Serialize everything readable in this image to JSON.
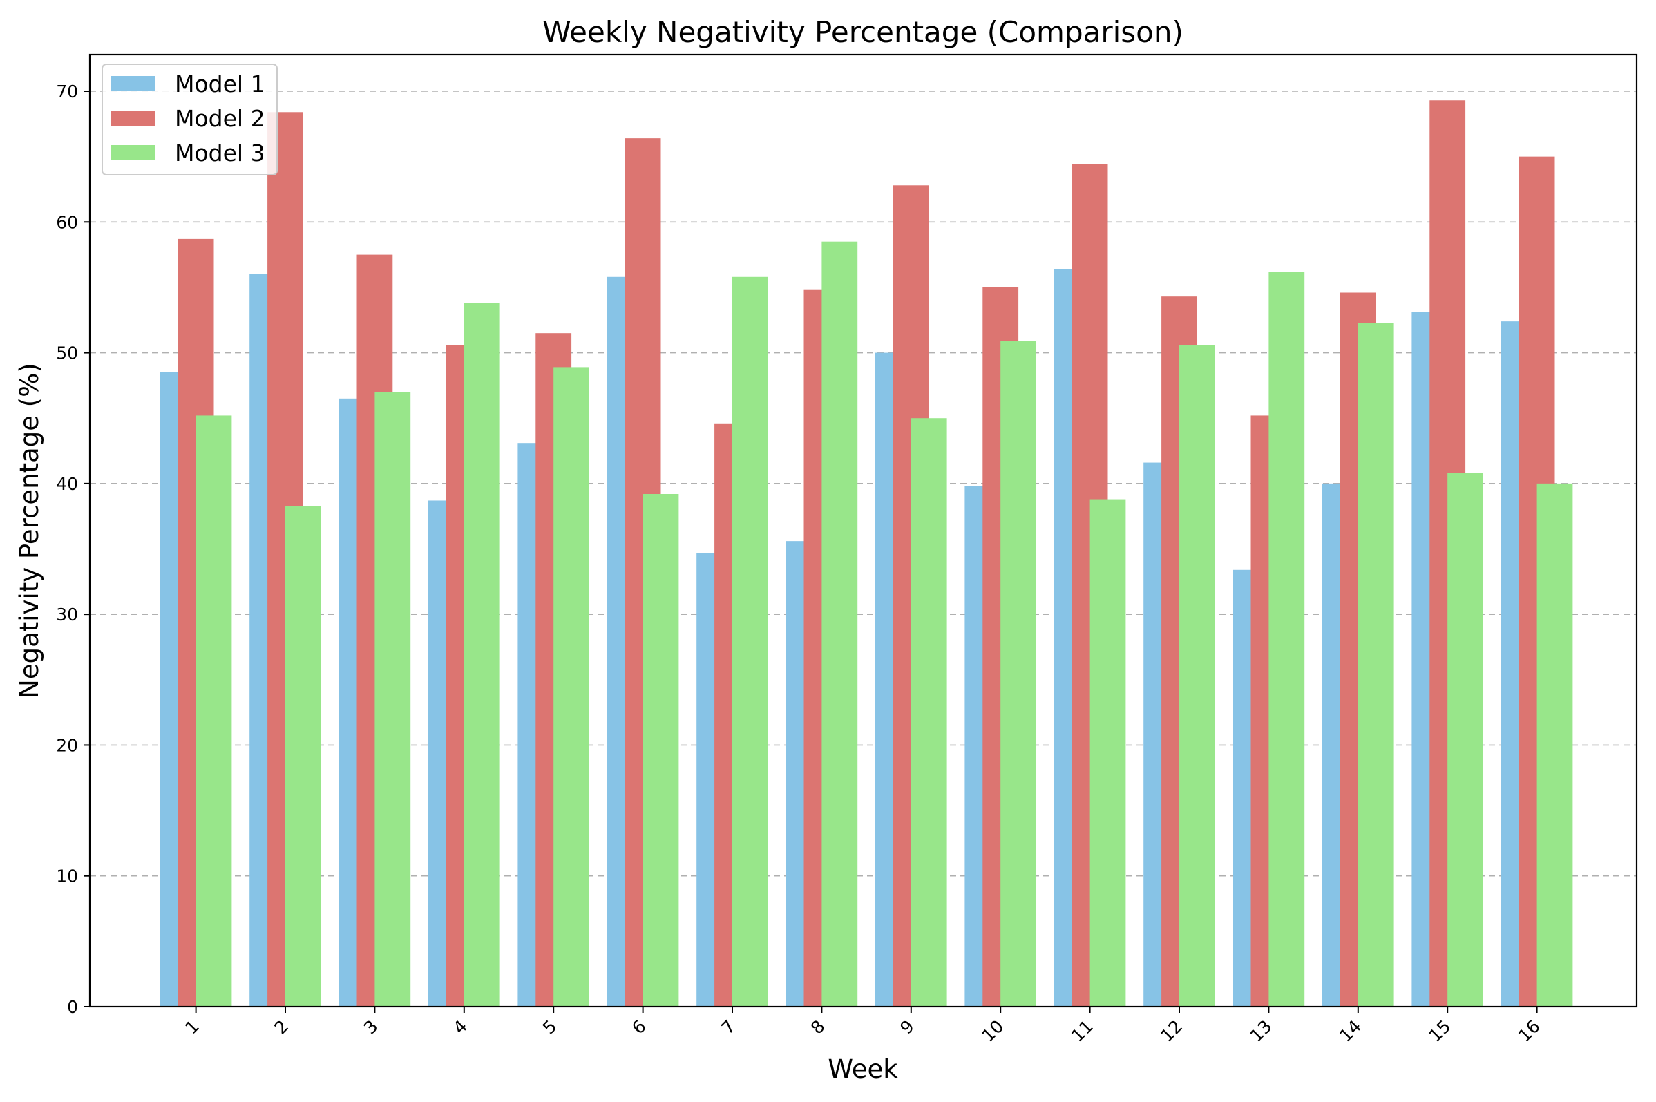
{
  "chart_data": {
    "type": "bar",
    "title": "Weekly Negativity Percentage (Comparison)",
    "xlabel": "Week",
    "ylabel": "Negativity Percentage (%)",
    "categories": [
      "1",
      "2",
      "3",
      "4",
      "5",
      "6",
      "7",
      "8",
      "9",
      "10",
      "11",
      "12",
      "13",
      "14",
      "15",
      "16"
    ],
    "ylim": [
      0,
      72.8
    ],
    "yticks": [
      0,
      10,
      20,
      30,
      40,
      50,
      60,
      70
    ],
    "grid": "y-dashed",
    "legend_position": "top-left",
    "series": [
      {
        "name": "Model 1",
        "color": "#87c3e6",
        "values": [
          48.5,
          56.0,
          46.5,
          38.7,
          43.1,
          55.8,
          34.7,
          35.6,
          50.0,
          39.8,
          56.4,
          41.6,
          33.4,
          40.0,
          53.1,
          52.4
        ]
      },
      {
        "name": "Model 2",
        "color": "#dc7571",
        "values": [
          58.7,
          68.4,
          57.5,
          50.6,
          51.5,
          66.4,
          44.6,
          54.8,
          62.8,
          55.0,
          64.4,
          54.3,
          45.2,
          54.6,
          69.3,
          65.0
        ]
      },
      {
        "name": "Model 3",
        "color": "#98e68a",
        "values": [
          45.2,
          38.3,
          47.0,
          53.8,
          48.9,
          39.2,
          55.8,
          58.5,
          45.0,
          50.9,
          38.8,
          50.6,
          56.2,
          52.3,
          40.8,
          40.0
        ]
      }
    ]
  }
}
